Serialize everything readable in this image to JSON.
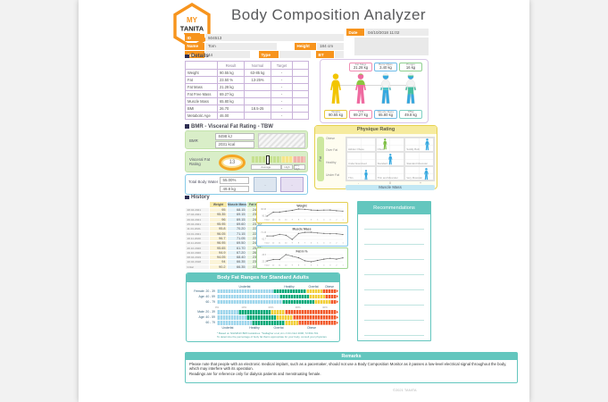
{
  "header": {
    "logo_line1": "MY",
    "logo_line2": "TANITA",
    "title": "Body Composition Analyzer",
    "date_label": "Date",
    "date_value": "04/10/2018 11:02"
  },
  "profile": {
    "id_label": "ID",
    "id_value": "504513",
    "name_label": "Name",
    "name_value": "Tom",
    "age_label": "Age",
    "age_value": "44",
    "type_label": "Type",
    "type_value": "",
    "height_label": "Height",
    "height_value": "184 cm",
    "bt_label": "BT",
    "bt_value": ""
  },
  "details": {
    "section_title": "Details",
    "columns": [
      "",
      "Result",
      "Normal",
      "Target",
      ""
    ],
    "rows": [
      {
        "label": "Weight",
        "result": "90.55 kg",
        "normal": "63-85 kg",
        "target": "-"
      },
      {
        "label": "Fat",
        "result": "23.50 %",
        "normal": "13-25%",
        "target": "-"
      },
      {
        "label": "Fat Mass",
        "result": "21.28 kg",
        "normal": "",
        "target": "-"
      },
      {
        "label": "Fat Free Mass",
        "result": "69.27 kg",
        "normal": "",
        "target": "-"
      },
      {
        "label": "Muscle Mass",
        "result": "65.80 kg",
        "normal": "",
        "target": "-"
      },
      {
        "label": "BMI",
        "result": "26.70",
        "normal": "18.5-25",
        "target": "-"
      },
      {
        "label": "Metabolic Age",
        "result": "46.00",
        "normal": "",
        "target": "-"
      }
    ]
  },
  "body_figures": {
    "top_labels": [
      {
        "label": "Fat Mass",
        "value": "21.28 kg"
      },
      {
        "label": "Bone Mass",
        "value": "3.40 kg"
      },
      {
        "label": "Protein",
        "value": "16 kg"
      }
    ],
    "bottom_labels": [
      {
        "label": "Weight",
        "value": "90.55 kg"
      },
      {
        "label": "FFM",
        "value": "69.27 kg"
      },
      {
        "label": "Muscle Mass",
        "value": "65.80 kg"
      },
      {
        "label": "TBW",
        "value": "49.8 kg"
      }
    ]
  },
  "bmr_tbw": {
    "section_title": "BMR - Visceral Fat Rating - TBW",
    "bmr_label": "BMR",
    "bmr_kj": "8498 kJ",
    "bmr_kcal": "2031 kcal",
    "visceral_label": "Visceral Fat Rating",
    "visceral_value": "13",
    "visceral_zones": [
      "Average",
      "High",
      "Very High"
    ],
    "tbw_label": "Total Body Water",
    "tbw_percent": "55.00%",
    "tbw_kg": "49.8 kg",
    "tbw_bar1": "-",
    "tbw_bar2": "-"
  },
  "physique": {
    "title": "Physique Rating",
    "y_axis_label": "Fat",
    "y_labels": [
      "Obese",
      "Over Fat",
      "Healthy",
      "Under Fat"
    ],
    "x_axis_label": "Muscle Mass",
    "x_ticks": [
      "-",
      "0",
      "+"
    ],
    "cells": [
      "Hidden Obese",
      "Obese",
      "Solidly Built",
      "Under Exercised",
      "Standard",
      "Standard Muscular",
      "Thin",
      "Thin and Muscular",
      "Very Muscular"
    ],
    "figures": [
      {
        "cell": 1,
        "color": "green"
      },
      {
        "cell": 2,
        "color": "blue"
      },
      {
        "cell": 4,
        "color": "blue"
      },
      {
        "cell": 6,
        "color": "blue"
      },
      {
        "cell": 8,
        "color": "blue"
      }
    ]
  },
  "history": {
    "section_title": "History",
    "columns": [
      "",
      "Weight",
      "Muscle Mass",
      "Fat in %"
    ],
    "rows": [
      [
        "28.04.2021",
        "95",
        "68.15",
        "24.50"
      ],
      [
        "27.04.2021",
        "95.35",
        "69.15",
        "23.70"
      ],
      [
        "26.04.2021",
        "96",
        "69.15",
        "24.20"
      ],
      [
        "25.04.2021",
        "95.95",
        "69.60",
        "23.70"
      ],
      [
        "11.01.2021",
        "95.8",
        "70.20",
        "22.90"
      ],
      [
        "04.01.2021",
        "96.05",
        "71.15",
        "22.10"
      ],
      [
        "16.11.2020",
        "96.7",
        "71.05",
        "22.70"
      ],
      [
        "10.11.2020",
        "96.95",
        "69.50",
        "24.60"
      ],
      [
        "26.10.2020",
        "95.65",
        "61.70",
        "25.50"
      ],
      [
        "19.10.2020",
        "94.9",
        "67.20",
        "26.50"
      ],
      [
        "08.04.2019",
        "94.05",
        "68.40",
        "23.50"
      ],
      [
        "10.04.2018",
        "94",
        "66.35",
        "23.50"
      ],
      [
        "Initial",
        "90.2",
        "66.35",
        "22.60"
      ]
    ]
  },
  "recommendations": {
    "title": "Recommendations"
  },
  "bodyfat": {
    "title": "Body Fat Ranges for Standard Adults",
    "zone_labels": [
      "Underfat",
      "Healthy",
      "Overfat",
      "Obese"
    ],
    "axis_ticks": [
      "0%",
      "10%",
      "20%",
      "30%",
      "40%"
    ],
    "female_label_rows": [
      "Female: 20 - 39",
      "Age: 40 - 59",
      "60 - 79"
    ],
    "male_label_rows": [
      "Male: 20 - 39",
      "Age: 40 - 59",
      "60 - 79"
    ],
    "footnote1": "* Based on NIH/WHO BMI Guidelines. *Gallagher et al, Am J Clin Nutr 2000; 72:694-701.",
    "footnote2": "To determine the percentage of body fat that is appropriate for your body, consult your physician."
  },
  "remarks": {
    "title": "Remarks",
    "line1": "Please note that people with an electronic medical implant, such as a pacemaker, should not use a Body Composition Monitor as it passes a low-level electrical signal throughout the body, which may interfere with its operation.",
    "line2": "Readings are for reference only for dialysis patients and menstruating female."
  },
  "footer": {
    "copyright": "©2021 TANITA"
  },
  "colors": {
    "accent_orange": "#F7941D",
    "teal_header": "#63C6BE",
    "physique_yellow": "#F6EB9E",
    "underfat_blue": "#9FD6EC",
    "healthy_green": "#00A878",
    "overfat_yellow": "#F2CF3A",
    "obese_orange": "#F25A2B"
  },
  "chart_data": [
    {
      "id": "weight",
      "type": "line",
      "title": "Weight",
      "x": [
        "Initial",
        "12",
        "11",
        "10",
        "9",
        "8",
        "7",
        "6",
        "5",
        "4",
        "3",
        "2",
        "1"
      ],
      "values": [
        90.2,
        94,
        94.05,
        94.9,
        95.65,
        96.95,
        96.7,
        96.05,
        95.8,
        95.95,
        96,
        95.35,
        95
      ],
      "ylim": [
        90.2,
        96.95
      ]
    },
    {
      "id": "muscle_mass",
      "type": "line",
      "title": "Muscle Mass",
      "x": [
        "Initial",
        "12",
        "11",
        "10",
        "9",
        "8",
        "7",
        "6",
        "5",
        "4",
        "3",
        "2",
        "1"
      ],
      "values": [
        66.35,
        66.35,
        68.4,
        67.2,
        61.7,
        69.5,
        71.05,
        71.15,
        70.2,
        69.6,
        69.15,
        69.15,
        68.15
      ],
      "ylim": [
        61.7,
        71.15
      ]
    },
    {
      "id": "fat_percent",
      "type": "line",
      "title": "Fat in %",
      "x": [
        "Initial",
        "12",
        "11",
        "10",
        "9",
        "8",
        "7",
        "6",
        "5",
        "4",
        "3",
        "2",
        "1"
      ],
      "values": [
        22.6,
        23.5,
        23.5,
        26.5,
        25.5,
        24.6,
        22.7,
        22.1,
        22.9,
        23.7,
        24.2,
        23.7,
        24.5
      ],
      "ylim": [
        22.1,
        26.5
      ]
    },
    {
      "id": "body_fat_ranges",
      "type": "bar",
      "title": "Body Fat Ranges for Standard Adults",
      "categories": [
        "Female 20-39",
        "Female 40-59",
        "Female 60-79",
        "Male 20-39",
        "Male 40-59",
        "Male 60-79"
      ],
      "series": [
        {
          "name": "Underfat",
          "values": [
            21,
            23,
            24,
            8,
            11,
            13
          ]
        },
        {
          "name": "Healthy",
          "values": [
            12,
            11,
            12,
            12,
            11,
            12
          ]
        },
        {
          "name": "Overfat",
          "values": [
            6,
            6,
            6,
            5,
            6,
            5
          ]
        },
        {
          "name": "Obese",
          "values": [
            6,
            5,
            3,
            20,
            17,
            15
          ]
        }
      ],
      "xlabel": "Body Fat %",
      "xlim": [
        0,
        45
      ]
    }
  ]
}
